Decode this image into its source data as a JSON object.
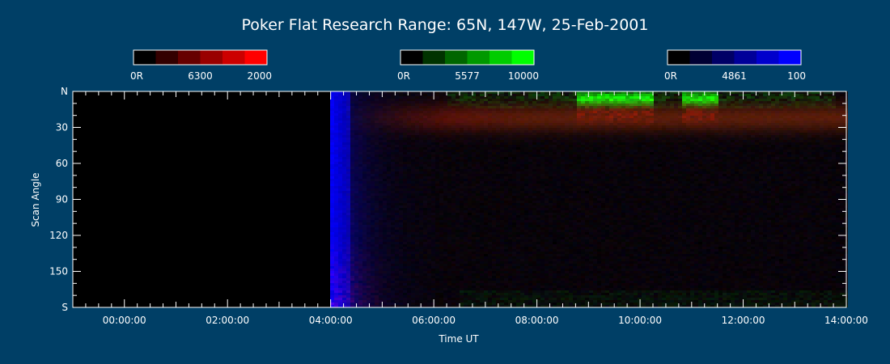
{
  "chart_data": {
    "type": "heatmap",
    "title": "Poker Flat Research Range: 65N, 147W, 25-Feb-2001",
    "xlabel": "Time UT",
    "ylabel": "Scan Angle",
    "x_tick_labels": [
      "00:00:00",
      "02:00:00",
      "04:00:00",
      "06:00:00",
      "08:00:00",
      "10:00:00",
      "12:00:00",
      "14:00:00"
    ],
    "x_tick_hours": [
      0,
      2,
      4,
      6,
      8,
      10,
      12,
      14
    ],
    "xlim_hours": [
      -1.0,
      14.0
    ],
    "y_tick_labels": [
      "N",
      "30",
      "60",
      "90",
      "120",
      "150",
      "S"
    ],
    "y_tick_values": [
      0,
      30,
      60,
      90,
      120,
      150,
      180
    ],
    "ylim": [
      0,
      180
    ],
    "data_start_hour": 4.0,
    "colorbars": [
      {
        "id": "red",
        "wavelength": "6300",
        "min_label": "0R",
        "max_label": "2000",
        "min": 0,
        "max": 2000,
        "colors": [
          "#000000",
          "#330000",
          "#660000",
          "#990000",
          "#cc0000",
          "#ff0000"
        ]
      },
      {
        "id": "green",
        "wavelength": "5577",
        "min_label": "0R",
        "max_label": "10000",
        "min": 0,
        "max": 10000,
        "colors": [
          "#000000",
          "#003300",
          "#006600",
          "#009900",
          "#00cc00",
          "#00ff00"
        ]
      },
      {
        "id": "blue",
        "wavelength": "4861",
        "min_label": "0R",
        "max_label": "100",
        "min": 0,
        "max": 100,
        "colors": [
          "#000000",
          "#000033",
          "#000066",
          "#000099",
          "#0000cc",
          "#0000ff"
        ]
      }
    ],
    "features": [
      {
        "channel": "blue",
        "description": "bright twilight band",
        "hour_start": 4.0,
        "hour_end": 4.5,
        "angle_start": 0,
        "angle_end": 180,
        "level": 100
      },
      {
        "channel": "green",
        "description": "bright auroral arcs near N horizon",
        "hour_start": 8.8,
        "hour_end": 10.3,
        "angle_start": 2,
        "angle_end": 25,
        "level": 10000
      },
      {
        "channel": "green",
        "description": "bright auroral arcs near N horizon",
        "hour_start": 10.8,
        "hour_end": 11.5,
        "angle_start": 2,
        "angle_end": 22,
        "level": 10000
      },
      {
        "channel": "red",
        "description": "diffuse red emission band",
        "hour_start": 4.5,
        "hour_end": 14.0,
        "angle_start": 10,
        "angle_end": 40,
        "level": 800
      }
    ]
  }
}
